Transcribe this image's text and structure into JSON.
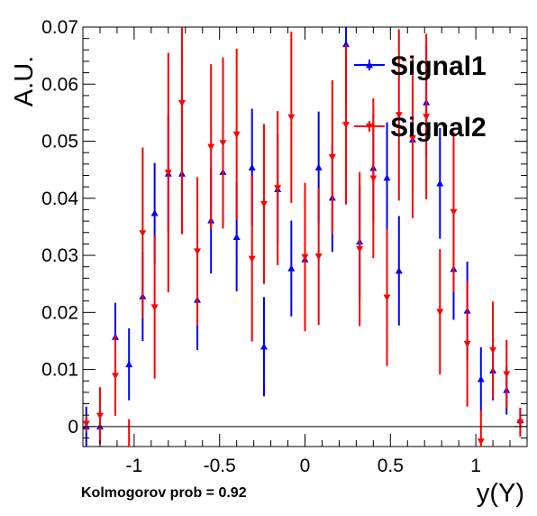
{
  "chart_data": {
    "type": "scatter",
    "xlabel": "y(Υ)",
    "ylabel": "A.U.",
    "xlim": [
      -1.3,
      1.3
    ],
    "ylim": [
      -0.0035,
      0.07
    ],
    "x_ticks": [
      -1,
      -0.5,
      0,
      0.5,
      1
    ],
    "x_tick_labels": [
      "-1",
      "-0.5",
      "0",
      "0.5",
      "1"
    ],
    "y_ticks": [
      0,
      0.01,
      0.02,
      0.03,
      0.04,
      0.05,
      0.06,
      0.07
    ],
    "y_tick_labels": [
      "0",
      "0.01",
      "0.02",
      "0.03",
      "0.04",
      "0.05",
      "0.06",
      "0.07"
    ],
    "reference_line_y": 0,
    "grid": false,
    "legend_position": "top-right",
    "annotation": "Kolmogorov prob = 0.92",
    "series": [
      {
        "name": "Signal1",
        "color": "#0000ff",
        "marker": "triangle-up",
        "points": [
          {
            "x": -1.28,
            "y": 0.0,
            "err": 0.0035
          },
          {
            "x": -1.2,
            "y": 0.0,
            "err": 0.0
          },
          {
            "x": -1.11,
            "y": 0.0157,
            "err": 0.006
          },
          {
            "x": -1.03,
            "y": 0.0109,
            "err": 0.0063
          },
          {
            "x": -0.95,
            "y": 0.0228,
            "err": 0.0078
          },
          {
            "x": -0.88,
            "y": 0.0374,
            "err": 0.0088
          },
          {
            "x": -0.8,
            "y": 0.0443,
            "err": 0.0103
          },
          {
            "x": -0.72,
            "y": 0.0443,
            "err": 0.0048
          },
          {
            "x": -0.63,
            "y": 0.0222,
            "err": 0.0088
          },
          {
            "x": -0.55,
            "y": 0.0361,
            "err": 0.0093
          },
          {
            "x": -0.48,
            "y": 0.0446,
            "err": 0.0098
          },
          {
            "x": -0.4,
            "y": 0.0332,
            "err": 0.0095
          },
          {
            "x": -0.31,
            "y": 0.0454,
            "err": 0.0103
          },
          {
            "x": -0.24,
            "y": 0.014,
            "err": 0.0087
          },
          {
            "x": -0.16,
            "y": 0.0416,
            "err": 0.0095
          },
          {
            "x": -0.08,
            "y": 0.0277,
            "err": 0.0084
          },
          {
            "x": 0.0,
            "y": 0.0293,
            "err": 0.0088
          },
          {
            "x": 0.08,
            "y": 0.0454,
            "err": 0.0098
          },
          {
            "x": 0.16,
            "y": 0.0401,
            "err": 0.0095
          },
          {
            "x": 0.24,
            "y": 0.067,
            "err": 0.0109
          },
          {
            "x": 0.32,
            "y": 0.0324,
            "err": 0.0097
          },
          {
            "x": 0.4,
            "y": 0.0453,
            "err": 0.0095
          },
          {
            "x": 0.48,
            "y": 0.0436,
            "err": 0.0097
          },
          {
            "x": 0.55,
            "y": 0.0273,
            "err": 0.0096
          },
          {
            "x": 0.63,
            "y": 0.0503,
            "err": 0.0095
          },
          {
            "x": 0.71,
            "y": 0.0568,
            "err": 0.0098
          },
          {
            "x": 0.79,
            "y": 0.0426,
            "err": 0.0097
          },
          {
            "x": 0.87,
            "y": 0.0276,
            "err": 0.0089
          },
          {
            "x": 0.95,
            "y": 0.0203,
            "err": 0.0086
          },
          {
            "x": 1.03,
            "y": 0.0083,
            "err": 0.0056
          },
          {
            "x": 1.1,
            "y": 0.0098,
            "err": 0.0052
          },
          {
            "x": 1.18,
            "y": 0.0064,
            "err": 0.0043
          },
          {
            "x": 1.26,
            "y": 0.0011,
            "err": 0.0022
          }
        ]
      },
      {
        "name": "Signal2",
        "color": "#ff0000",
        "marker": "triangle-down",
        "points": [
          {
            "x": -1.28,
            "y": 0.0005,
            "err": 0.0015
          },
          {
            "x": -1.2,
            "y": 0.0019,
            "err": 0.005
          },
          {
            "x": -1.11,
            "y": 0.0089,
            "err": 0.007
          },
          {
            "x": -1.03,
            "y": -0.0037,
            "err": 0.005
          },
          {
            "x": -0.95,
            "y": 0.0339,
            "err": 0.015
          },
          {
            "x": -0.88,
            "y": 0.0209,
            "err": 0.0125
          },
          {
            "x": -0.8,
            "y": 0.0445,
            "err": 0.021
          },
          {
            "x": -0.72,
            "y": 0.0567,
            "err": 0.023
          },
          {
            "x": -0.63,
            "y": 0.0307,
            "err": 0.013
          },
          {
            "x": -0.55,
            "y": 0.049,
            "err": 0.0145
          },
          {
            "x": -0.48,
            "y": 0.0497,
            "err": 0.015
          },
          {
            "x": -0.4,
            "y": 0.0512,
            "err": 0.015
          },
          {
            "x": -0.31,
            "y": 0.0294,
            "err": 0.0145
          },
          {
            "x": -0.24,
            "y": 0.039,
            "err": 0.014
          },
          {
            "x": -0.16,
            "y": 0.0418,
            "err": 0.0135
          },
          {
            "x": -0.08,
            "y": 0.0542,
            "err": 0.015
          },
          {
            "x": 0.0,
            "y": 0.0297,
            "err": 0.013
          },
          {
            "x": 0.08,
            "y": 0.0298,
            "err": 0.012
          },
          {
            "x": 0.16,
            "y": 0.0472,
            "err": 0.0135
          },
          {
            "x": 0.24,
            "y": 0.0529,
            "err": 0.014
          },
          {
            "x": 0.32,
            "y": 0.0311,
            "err": 0.0135
          },
          {
            "x": 0.4,
            "y": 0.0435,
            "err": 0.014
          },
          {
            "x": 0.48,
            "y": 0.0226,
            "err": 0.012
          },
          {
            "x": 0.55,
            "y": 0.0546,
            "err": 0.015
          },
          {
            "x": 0.63,
            "y": 0.0505,
            "err": 0.014
          },
          {
            "x": 0.71,
            "y": 0.0543,
            "err": 0.0145
          },
          {
            "x": 0.79,
            "y": 0.0201,
            "err": 0.011
          },
          {
            "x": 0.87,
            "y": 0.0376,
            "err": 0.014
          },
          {
            "x": 0.95,
            "y": 0.0145,
            "err": 0.011
          },
          {
            "x": 1.03,
            "y": -0.0026,
            "err": 0.0055
          },
          {
            "x": 1.1,
            "y": 0.0134,
            "err": 0.0085
          },
          {
            "x": 1.18,
            "y": 0.0092,
            "err": 0.006
          },
          {
            "x": 1.26,
            "y": 0.0007,
            "err": 0.0025
          }
        ]
      }
    ]
  }
}
